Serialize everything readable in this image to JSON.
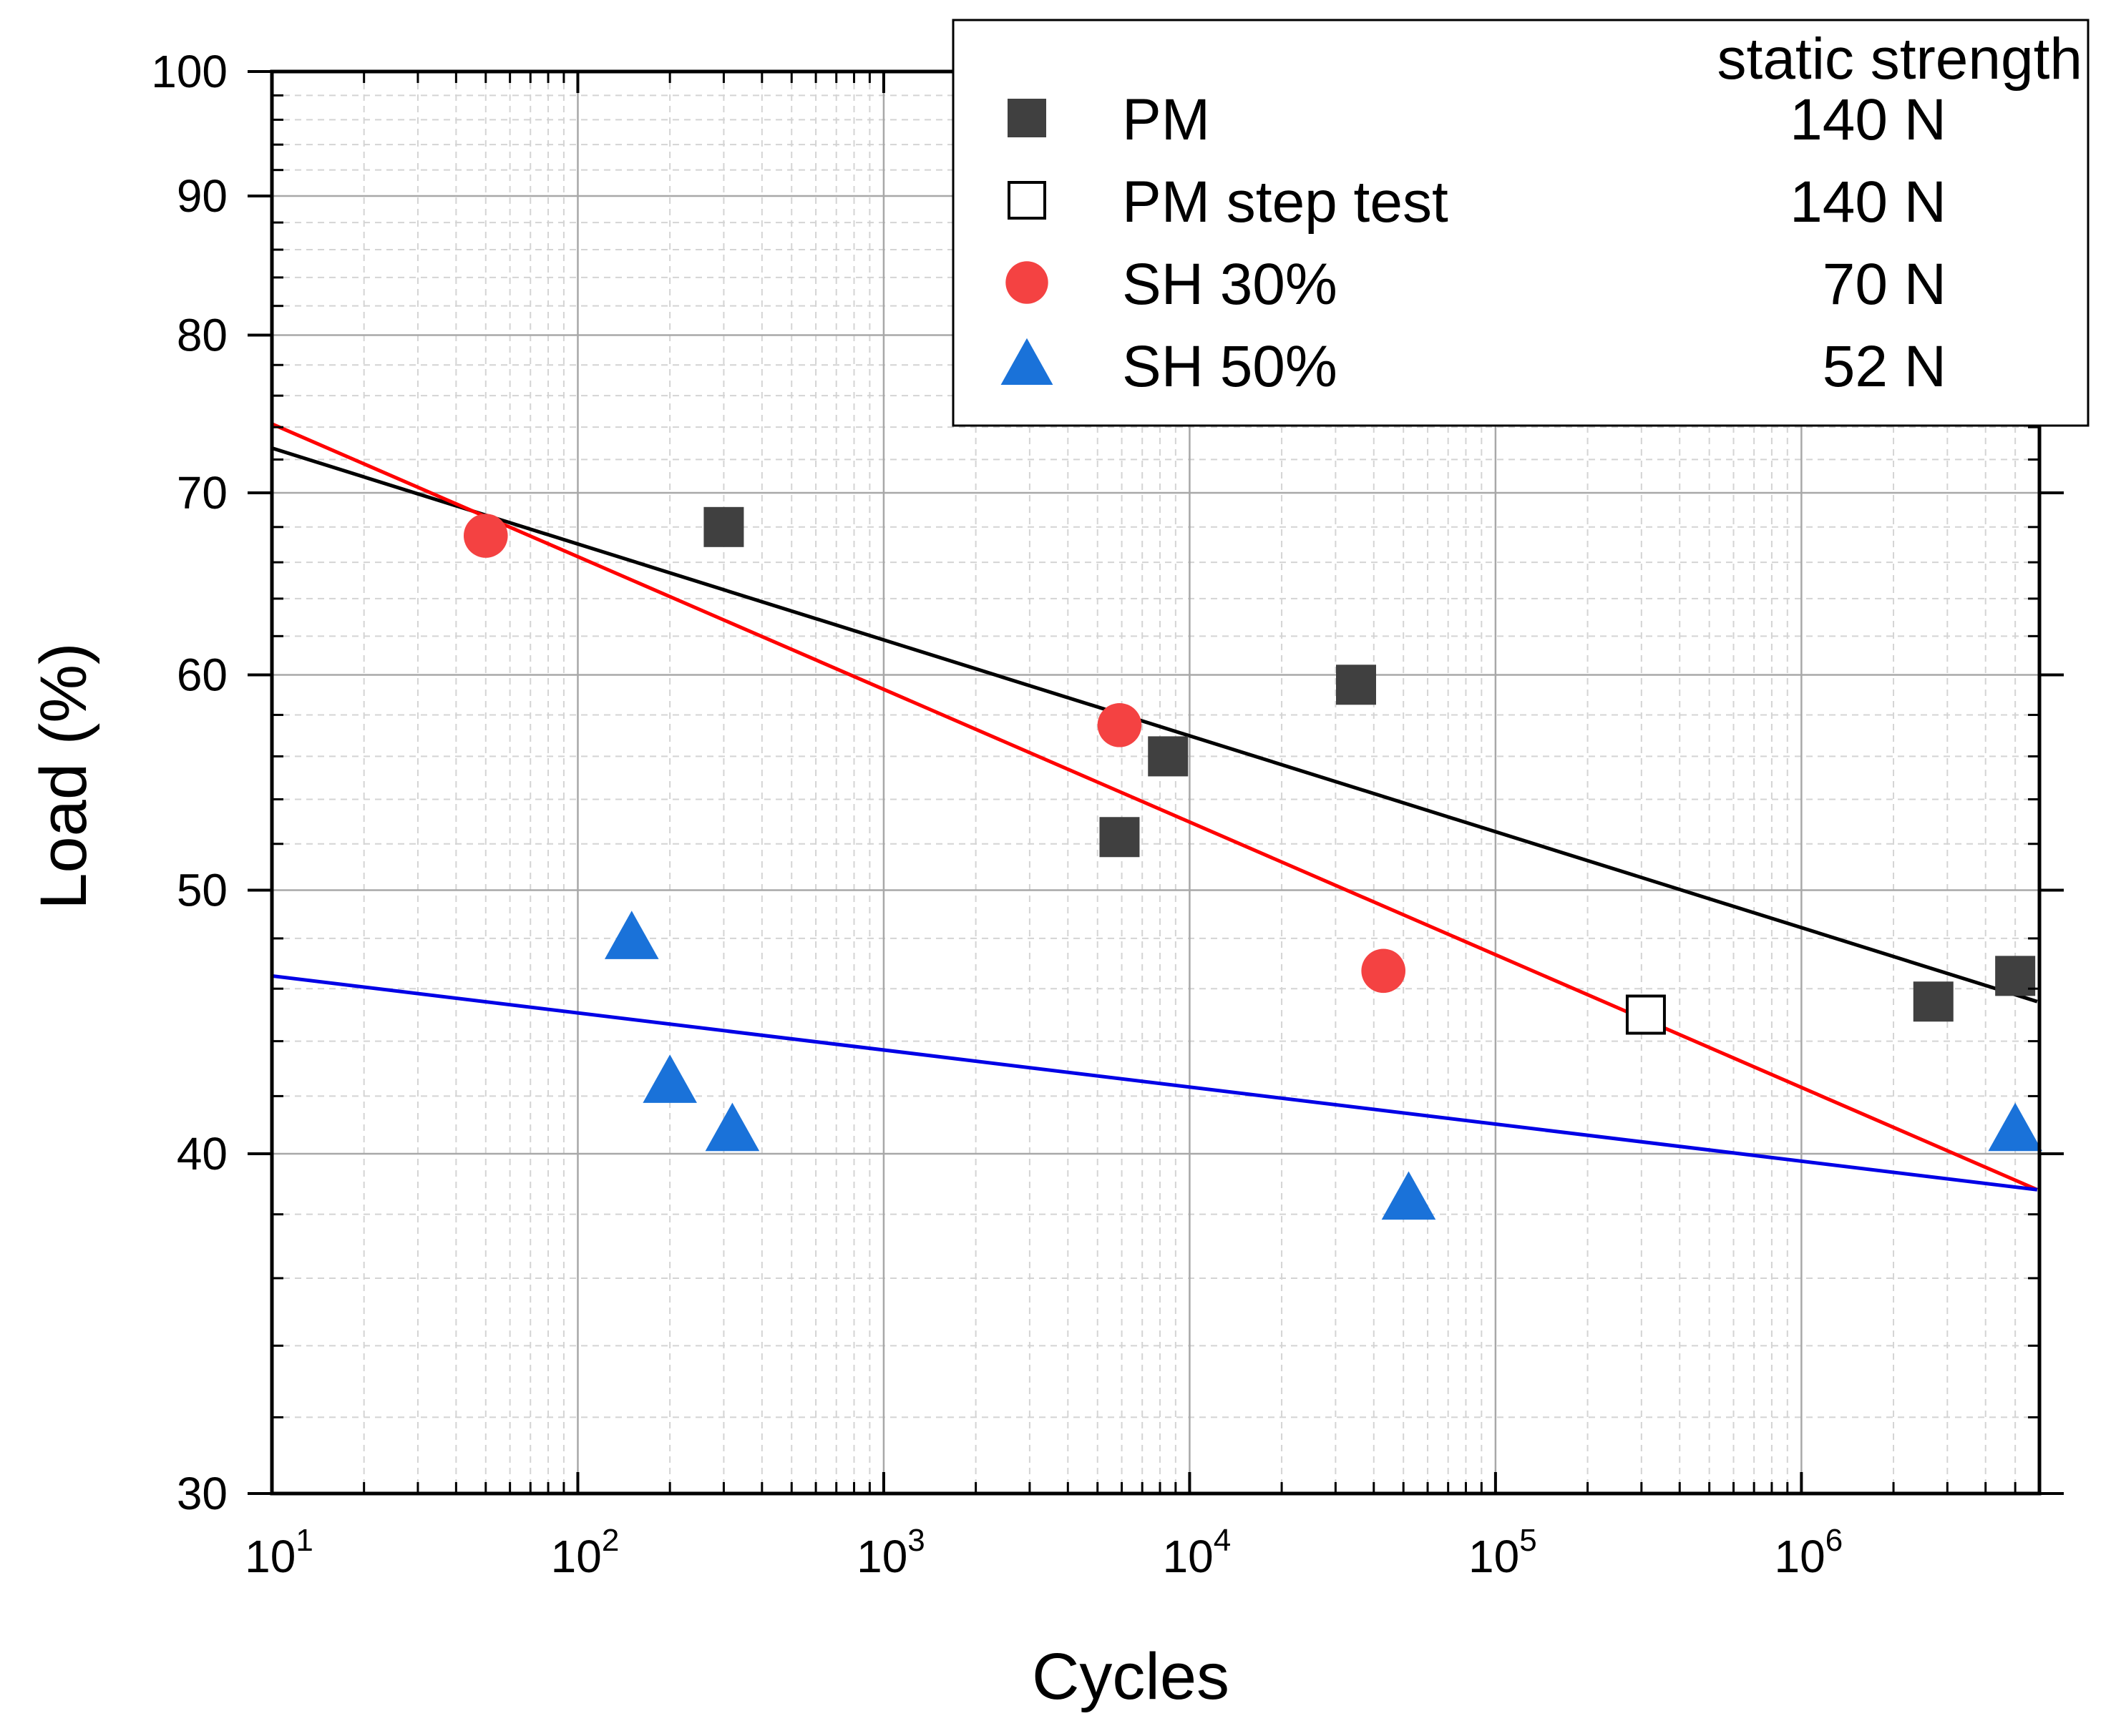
{
  "chart_data": {
    "type": "scatter",
    "xlabel": "Cycles",
    "ylabel": "Load (%)",
    "x_scale": "log",
    "y_scale": "log",
    "xlim": [
      10,
      6000000
    ],
    "ylim": [
      30,
      100
    ],
    "x_ticks": [
      {
        "value": 10,
        "base": "10",
        "exp": "1"
      },
      {
        "value": 100,
        "base": "10",
        "exp": "2"
      },
      {
        "value": 1000,
        "base": "10",
        "exp": "3"
      },
      {
        "value": 10000,
        "base": "10",
        "exp": "4"
      },
      {
        "value": 100000,
        "base": "10",
        "exp": "5"
      },
      {
        "value": 1000000,
        "base": "10",
        "exp": "6"
      }
    ],
    "y_ticks": [
      {
        "value": 30,
        "label": "30"
      },
      {
        "value": 40,
        "label": "40"
      },
      {
        "value": 50,
        "label": "50"
      },
      {
        "value": 60,
        "label": "60"
      },
      {
        "value": 70,
        "label": "70"
      },
      {
        "value": 80,
        "label": "80"
      },
      {
        "value": 90,
        "label": "90"
      },
      {
        "value": 100,
        "label": "100"
      }
    ],
    "grid": true,
    "legend": {
      "position": "top-right",
      "header": "static strength",
      "entries": [
        {
          "label": "PM",
          "value": "140 N",
          "marker": "square-filled",
          "color": "#404040"
        },
        {
          "label": "PM step test",
          "value": "140 N",
          "marker": "square-open",
          "color": "#000000"
        },
        {
          "label": "SH 30%",
          "value": "70 N",
          "marker": "circle",
          "color": "#f44242"
        },
        {
          "label": "SH 50%",
          "value": "52 N",
          "marker": "triangle",
          "color": "#1a72d9"
        }
      ]
    },
    "series": [
      {
        "name": "PM",
        "marker": "square-filled",
        "color": "#404040",
        "points": [
          [
            300,
            68
          ],
          [
            5900,
            52.3
          ],
          [
            8500,
            56
          ],
          [
            35000,
            59.5
          ],
          [
            2700000,
            45.5
          ],
          [
            5000000,
            46.5
          ]
        ]
      },
      {
        "name": "PM step test",
        "marker": "square-open",
        "color": "#000000",
        "points": [
          [
            310000,
            45
          ]
        ]
      },
      {
        "name": "SH 30%",
        "marker": "circle",
        "color": "#f44242",
        "points": [
          [
            50,
            67.5
          ],
          [
            5900,
            57.5
          ],
          [
            43000,
            46.7
          ]
        ]
      },
      {
        "name": "SH 50%",
        "marker": "triangle",
        "color": "#1a72d9",
        "points": [
          [
            150,
            48
          ],
          [
            200,
            42.5
          ],
          [
            320,
            40.8
          ],
          [
            52000,
            38.5
          ],
          [
            5000000,
            40.8
          ]
        ]
      }
    ],
    "fit_lines": [
      {
        "series": "PM",
        "color": "#000000",
        "from": [
          10,
          72.7
        ],
        "to": [
          5900000,
          45.5
        ]
      },
      {
        "series": "SH 30%",
        "color": "#ff0000",
        "from": [
          10,
          74.2
        ],
        "to": [
          5900000,
          38.8
        ]
      },
      {
        "series": "SH 50%",
        "color": "#0000e6",
        "from": [
          10,
          46.5
        ],
        "to": [
          5900000,
          38.8
        ]
      }
    ]
  }
}
